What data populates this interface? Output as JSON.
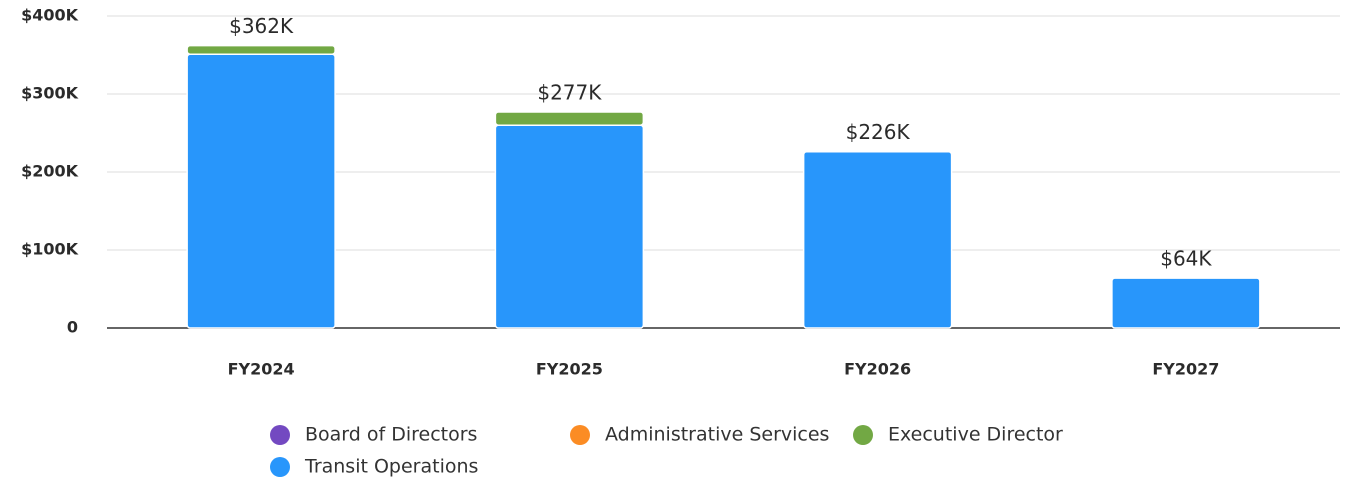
{
  "chart_data": {
    "type": "stacked_bar",
    "categories": [
      "FY2024",
      "FY2025",
      "FY2026",
      "FY2027"
    ],
    "series": [
      {
        "name": "Board of Directors",
        "color": "#7349c1",
        "values": [
          0,
          0,
          0,
          0
        ]
      },
      {
        "name": "Administrative Services",
        "color": "#fb8c24",
        "values": [
          0,
          0,
          0,
          0
        ]
      },
      {
        "name": "Executive Director",
        "color": "#72a844",
        "values": [
          11000,
          17000,
          0,
          0
        ]
      },
      {
        "name": "Transit Operations",
        "color": "#2896fb",
        "values": [
          351000,
          260000,
          226000,
          64000
        ]
      }
    ],
    "totals": [
      362000,
      277000,
      226000,
      64000
    ],
    "total_labels": [
      "$362K",
      "$277K",
      "$226K",
      "$64K"
    ],
    "ylim": [
      0,
      400000
    ],
    "yticks": [
      0,
      {
        "value": 100000,
        "label": "$100K"
      },
      {
        "value": 200000,
        "label": "$200K"
      },
      {
        "value": 300000,
        "label": "$300K"
      },
      {
        "value": 400000,
        "label": "$400K"
      }
    ],
    "grid": true
  }
}
